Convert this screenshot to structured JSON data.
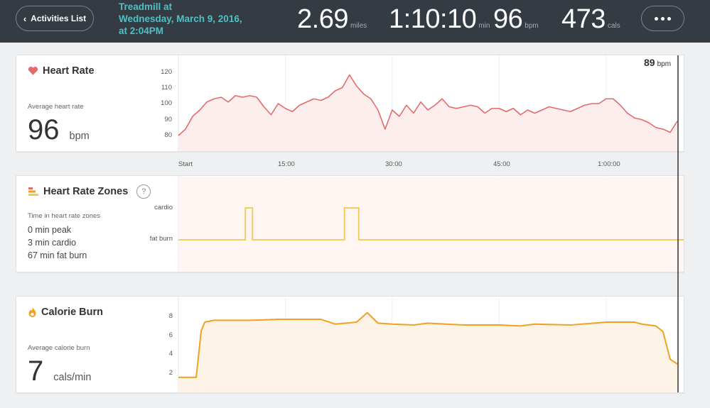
{
  "header": {
    "back_label": "Activities List",
    "title_lines": [
      "Treadmill at",
      "Wednesday, March 9, 2016,",
      "at 2:04PM"
    ],
    "stats": [
      {
        "value": "2.69",
        "unit": "miles"
      },
      {
        "value": "1:10:10",
        "unit": "min"
      },
      {
        "value": "96",
        "unit": "bpm"
      },
      {
        "value": "473",
        "unit": "cals"
      }
    ]
  },
  "heart_rate": {
    "title": "Heart Rate",
    "avg_label": "Average heart rate",
    "avg_value": "96",
    "avg_unit": "bpm",
    "y_ticks": [
      "120",
      "110",
      "100",
      "90",
      "80"
    ],
    "cursor_value": "89",
    "cursor_unit": "bpm",
    "color": "#e36b6b"
  },
  "x_ticks": [
    "Start",
    "15:00",
    "30:00",
    "45:00",
    "1:00:00"
  ],
  "zones": {
    "title": "Heart Rate Zones",
    "help": "?",
    "summary_label": "Time in heart rate zones",
    "lines": [
      "0 min peak",
      "3 min cardio",
      "67 min fat burn"
    ],
    "y_labels": [
      "cardio",
      "fat burn"
    ],
    "color": "#f2c94c"
  },
  "calories": {
    "title": "Calorie Burn",
    "avg_label": "Average calorie burn",
    "avg_value": "7",
    "avg_unit": "cals/min",
    "y_ticks": [
      "8",
      "6",
      "4",
      "2"
    ],
    "color": "#f0a21e"
  },
  "chart_data": [
    {
      "type": "line",
      "title": "Heart Rate",
      "x_unit": "minutes",
      "ylim": [
        75,
        125
      ],
      "series": [
        {
          "values": [
            [
              0,
              80
            ],
            [
              1,
              84
            ],
            [
              2,
              92
            ],
            [
              3,
              96
            ],
            [
              4,
              101
            ],
            [
              5,
              103
            ],
            [
              6,
              104
            ],
            [
              7,
              101
            ],
            [
              8,
              105
            ],
            [
              9,
              104
            ],
            [
              10,
              105
            ],
            [
              11,
              104
            ],
            [
              12,
              98
            ],
            [
              13,
              93
            ],
            [
              14,
              100
            ],
            [
              15,
              97
            ],
            [
              16,
              95
            ],
            [
              17,
              99
            ],
            [
              18,
              101
            ],
            [
              19,
              103
            ],
            [
              20,
              102
            ],
            [
              21,
              104
            ],
            [
              22,
              108
            ],
            [
              23,
              110
            ],
            [
              24,
              118
            ],
            [
              25,
              111
            ],
            [
              26,
              106
            ],
            [
              27,
              103
            ],
            [
              28,
              96
            ],
            [
              29,
              84
            ],
            [
              30,
              96
            ],
            [
              31,
              92
            ],
            [
              32,
              99
            ],
            [
              33,
              94
            ],
            [
              34,
              101
            ],
            [
              35,
              96
            ],
            [
              36,
              99
            ],
            [
              37,
              103
            ],
            [
              38,
              98
            ],
            [
              39,
              97
            ],
            [
              40,
              98
            ],
            [
              41,
              99
            ],
            [
              42,
              98
            ],
            [
              43,
              94
            ],
            [
              44,
              97
            ],
            [
              45,
              97
            ],
            [
              46,
              95
            ],
            [
              47,
              97
            ],
            [
              48,
              93
            ],
            [
              49,
              96
            ],
            [
              50,
              94
            ],
            [
              51,
              96
            ],
            [
              52,
              98
            ],
            [
              53,
              97
            ],
            [
              54,
              96
            ],
            [
              55,
              95
            ],
            [
              56,
              97
            ],
            [
              57,
              99
            ],
            [
              58,
              100
            ],
            [
              59,
              100
            ],
            [
              60,
              103
            ],
            [
              61,
              103
            ],
            [
              62,
              99
            ],
            [
              63,
              94
            ],
            [
              64,
              91
            ],
            [
              65,
              90
            ],
            [
              66,
              88
            ],
            [
              67,
              85
            ],
            [
              68,
              84
            ],
            [
              69,
              82
            ],
            [
              70,
              89
            ]
          ]
        }
      ]
    },
    {
      "type": "line",
      "title": "Heart Rate Zones",
      "x_unit": "minutes",
      "categories": [
        "fat burn",
        "cardio"
      ],
      "series": [
        {
          "values": [
            [
              0,
              "fat burn"
            ],
            [
              9.4,
              "fat burn"
            ],
            [
              9.4,
              "cardio"
            ],
            [
              10.4,
              "cardio"
            ],
            [
              10.4,
              "fat burn"
            ],
            [
              23.3,
              "fat burn"
            ],
            [
              23.3,
              "cardio"
            ],
            [
              25.3,
              "cardio"
            ],
            [
              25.3,
              "fat burn"
            ],
            [
              70,
              "fat burn"
            ]
          ]
        }
      ]
    },
    {
      "type": "area",
      "title": "Calorie Burn",
      "x_unit": "minutes",
      "ylim": [
        1,
        9
      ],
      "series": [
        {
          "values": [
            [
              0,
              1.6
            ],
            [
              2.5,
              1.6
            ],
            [
              3.2,
              6.5
            ],
            [
              3.7,
              7.4
            ],
            [
              5,
              7.6
            ],
            [
              10,
              7.6
            ],
            [
              14,
              7.7
            ],
            [
              20,
              7.7
            ],
            [
              22,
              7.2
            ],
            [
              25,
              7.4
            ],
            [
              26.5,
              8.4
            ],
            [
              28,
              7.3
            ],
            [
              30,
              7.2
            ],
            [
              33,
              7.1
            ],
            [
              35,
              7.3
            ],
            [
              40,
              7.1
            ],
            [
              45,
              7.1
            ],
            [
              48,
              7.0
            ],
            [
              50,
              7.2
            ],
            [
              55,
              7.1
            ],
            [
              60,
              7.4
            ],
            [
              64,
              7.4
            ],
            [
              65,
              7.2
            ],
            [
              67,
              7.0
            ],
            [
              68,
              6.4
            ],
            [
              69,
              3.5
            ],
            [
              70,
              3.0
            ]
          ]
        }
      ]
    }
  ]
}
